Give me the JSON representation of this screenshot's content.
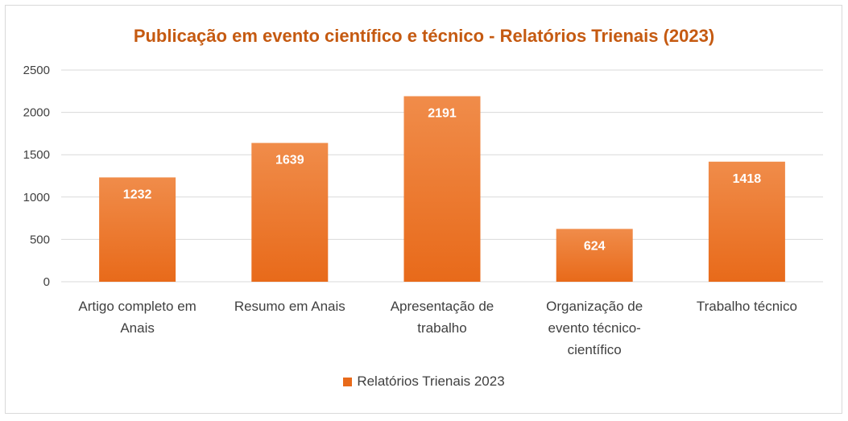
{
  "chart_data": {
    "type": "bar",
    "title": "Publicação em evento científico e técnico - Relatórios Trienais (2023)",
    "xlabel": "",
    "ylabel": "",
    "categories": [
      [
        "Artigo completo em",
        "Anais"
      ],
      [
        "Resumo em Anais"
      ],
      [
        "Apresentação de",
        "trabalho"
      ],
      [
        "Organização de",
        "evento técnico-",
        "científico"
      ],
      [
        "Trabalho técnico"
      ]
    ],
    "series": [
      {
        "name": "Relatórios Trienais 2023",
        "values": [
          1232,
          1639,
          2191,
          624,
          1418
        ]
      }
    ],
    "ylim": [
      0,
      2500
    ],
    "yticks": [
      0,
      500,
      1000,
      1500,
      2000,
      2500
    ],
    "grid": true,
    "legend": "bottom",
    "data_labels": true
  },
  "colors": {
    "title": "#c55a11",
    "bar_top": "#f08c4a",
    "bar_bottom": "#e86a1a",
    "gridline": "#d9d9d9",
    "axis_text": "#404040",
    "data_label": "#ffffff"
  }
}
